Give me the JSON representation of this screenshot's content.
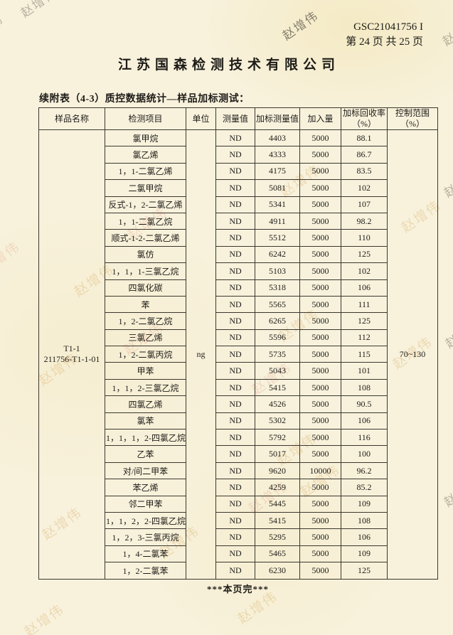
{
  "page": {
    "doc_code": "GSC21041756 I",
    "page_info": "第 24 页 共 25 页",
    "company": "江苏国森检测技术有限公司",
    "table_caption": "续附表（4-3）质控数据统计—样品加标测试：",
    "footer": "***本页完***",
    "watermark_text": "赵增伟"
  },
  "table": {
    "headers": [
      {
        "l1": "样品名称"
      },
      {
        "l1": "检测项目"
      },
      {
        "l1": "单位"
      },
      {
        "l1": "测量值"
      },
      {
        "l1": "加标测量值"
      },
      {
        "l1": "加入量"
      },
      {
        "l1": "加标回收率",
        "l2": "（%）"
      },
      {
        "l1": "控制范围",
        "l2": "（%）"
      }
    ],
    "sample_name": "T1-1\n211756-T1-1-01",
    "unit": "ng",
    "control_range": "70~130",
    "rows": [
      {
        "item": "氯甲烷",
        "measured": "ND",
        "spiked": "4403",
        "added": "5000",
        "recovery": "88.1"
      },
      {
        "item": "氯乙烯",
        "measured": "ND",
        "spiked": "4333",
        "added": "5000",
        "recovery": "86.7"
      },
      {
        "item": "1，1-二氯乙烯",
        "measured": "ND",
        "spiked": "4175",
        "added": "5000",
        "recovery": "83.5"
      },
      {
        "item": "二氯甲烷",
        "measured": "ND",
        "spiked": "5081",
        "added": "5000",
        "recovery": "102"
      },
      {
        "item": "反式-1，2-二氯乙烯",
        "measured": "ND",
        "spiked": "5341",
        "added": "5000",
        "recovery": "107"
      },
      {
        "item": "1，1-二氯乙烷",
        "measured": "ND",
        "spiked": "4911",
        "added": "5000",
        "recovery": "98.2"
      },
      {
        "item": "顺式-1-2-二氯乙烯",
        "measured": "ND",
        "spiked": "5512",
        "added": "5000",
        "recovery": "110"
      },
      {
        "item": "氯仿",
        "measured": "ND",
        "spiked": "6242",
        "added": "5000",
        "recovery": "125"
      },
      {
        "item": "1，1，1-三氯乙烷",
        "measured": "ND",
        "spiked": "5103",
        "added": "5000",
        "recovery": "102"
      },
      {
        "item": "四氯化碳",
        "measured": "ND",
        "spiked": "5318",
        "added": "5000",
        "recovery": "106"
      },
      {
        "item": "苯",
        "measured": "ND",
        "spiked": "5565",
        "added": "5000",
        "recovery": "111"
      },
      {
        "item": "1，2-二氯乙烷",
        "measured": "ND",
        "spiked": "6265",
        "added": "5000",
        "recovery": "125"
      },
      {
        "item": "三氯乙烯",
        "measured": "ND",
        "spiked": "5596",
        "added": "5000",
        "recovery": "112"
      },
      {
        "item": "1，2-二氯丙烷",
        "measured": "ND",
        "spiked": "5735",
        "added": "5000",
        "recovery": "115"
      },
      {
        "item": "甲苯",
        "measured": "ND",
        "spiked": "5043",
        "added": "5000",
        "recovery": "101"
      },
      {
        "item": "1，1，2-三氯乙烷",
        "measured": "ND",
        "spiked": "5415",
        "added": "5000",
        "recovery": "108"
      },
      {
        "item": "四氯乙烯",
        "measured": "ND",
        "spiked": "4526",
        "added": "5000",
        "recovery": "90.5"
      },
      {
        "item": "氯苯",
        "measured": "ND",
        "spiked": "5302",
        "added": "5000",
        "recovery": "106"
      },
      {
        "item": "1，1，1，2-四氯乙烷",
        "measured": "ND",
        "spiked": "5792",
        "added": "5000",
        "recovery": "116"
      },
      {
        "item": "乙苯",
        "measured": "ND",
        "spiked": "5017",
        "added": "5000",
        "recovery": "100"
      },
      {
        "item": "对/间二甲苯",
        "measured": "ND",
        "spiked": "9620",
        "added": "10000",
        "recovery": "96.2"
      },
      {
        "item": "苯乙烯",
        "measured": "ND",
        "spiked": "4259",
        "added": "5000",
        "recovery": "85.2"
      },
      {
        "item": "邻二甲苯",
        "measured": "ND",
        "spiked": "5445",
        "added": "5000",
        "recovery": "109"
      },
      {
        "item": "1，1，2，2-四氯乙烷",
        "measured": "ND",
        "spiked": "5415",
        "added": "5000",
        "recovery": "108"
      },
      {
        "item": "1，2，3-三氯丙烷",
        "measured": "ND",
        "spiked": "5295",
        "added": "5000",
        "recovery": "106"
      },
      {
        "item": "1，4-二氯苯",
        "measured": "ND",
        "spiked": "5465",
        "added": "5000",
        "recovery": "109"
      },
      {
        "item": "1，2-二氯苯",
        "measured": "ND",
        "spiked": "6230",
        "added": "5000",
        "recovery": "125"
      }
    ]
  }
}
